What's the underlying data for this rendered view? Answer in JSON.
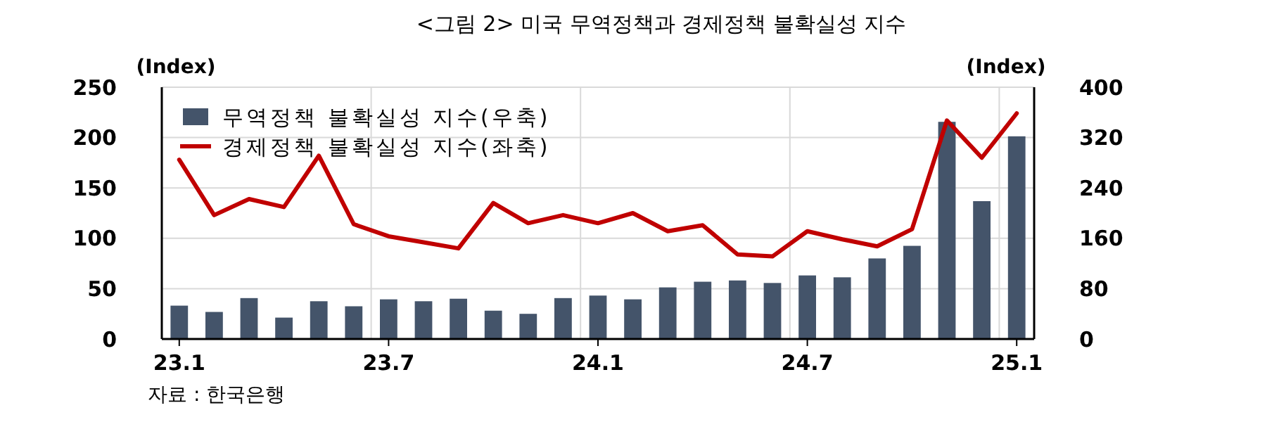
{
  "chart_data": {
    "type": "bar",
    "title": "<그림 2> 미국 무역정책과 경제정책 불확실성 지수",
    "ylabel": "(Index)",
    "y2label": "(Index)",
    "categories": [
      "23.1",
      null,
      null,
      null,
      null,
      null,
      "23.7",
      null,
      null,
      null,
      null,
      null,
      "24.1",
      null,
      null,
      null,
      null,
      null,
      "24.7",
      null,
      null,
      null,
      null,
      null,
      "25.1"
    ],
    "series": [
      {
        "name": "무역정책 불확실성 지수(우축)",
        "axis": "y2",
        "color": "#44546a",
        "values": [
          53,
          43,
          65,
          34,
          60,
          52,
          63,
          60,
          64,
          45,
          40,
          65,
          69,
          63,
          82,
          91,
          93,
          89,
          101,
          98,
          128,
          148,
          345,
          219,
          322
        ]
      },
      {
        "name": "경제정책 불확실성 지수(좌축)",
        "type": "line",
        "color": "#c00000",
        "values": [
          178,
          123,
          139,
          131,
          182,
          114,
          102,
          96,
          90,
          135,
          115,
          123,
          115,
          125,
          107,
          113,
          84,
          82,
          107,
          99,
          92,
          109,
          217,
          180,
          224
        ]
      }
    ],
    "ylim": [
      0,
      250
    ],
    "yticks": [
      0,
      50,
      100,
      150,
      200,
      250
    ],
    "y2lim": [
      0,
      400
    ],
    "y2ticks": [
      0,
      80,
      160,
      240,
      320,
      400
    ],
    "grid": true,
    "legend": "top left",
    "annotations": [
      "자료 : 한국은행"
    ]
  }
}
